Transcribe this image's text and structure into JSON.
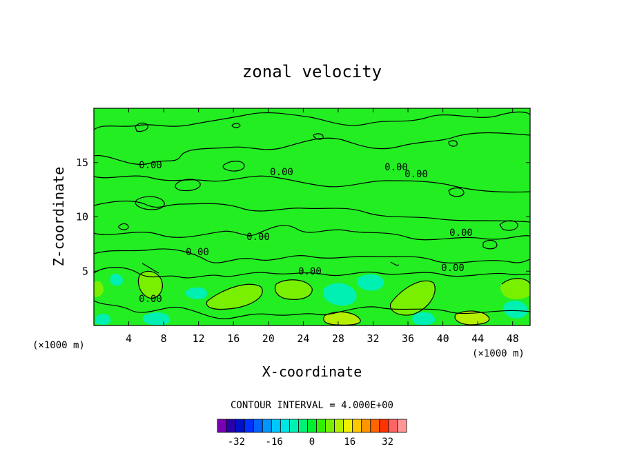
{
  "chart_data": {
    "type": "heatmap",
    "title": "zonal velocity",
    "xlabel": "X-coordinate",
    "ylabel": "Z-coordinate",
    "x_unit_left": "(×1000 m)",
    "x_unit_right": "(×1000 m)",
    "xlim": [
      0,
      50
    ],
    "ylim": [
      0,
      20
    ],
    "x_ticks": [
      4,
      8,
      12,
      16,
      20,
      24,
      28,
      32,
      36,
      40,
      44,
      48
    ],
    "y_ticks": [
      5,
      10,
      15
    ],
    "contour_interval_label": "CONTOUR INTERVAL = 4.000E+00",
    "contour_interval": 4.0,
    "contour_labels": [
      "0.00",
      "0.00",
      "0.00",
      "0.00",
      "0.00",
      "0.00",
      "0.00",
      "0.00",
      "0.00",
      "0.00",
      "0.00"
    ],
    "colorbar": {
      "min": -40,
      "max": 40,
      "step": 4,
      "tick_values": [
        -32,
        -16,
        0,
        16,
        32
      ],
      "tick_labels": [
        "-32",
        "-16",
        "0",
        "16",
        "32"
      ],
      "colors": [
        "#7a00b4",
        "#2a00a8",
        "#0010c8",
        "#0030ff",
        "#0064ff",
        "#0096ff",
        "#00c8ff",
        "#00e6e6",
        "#00f0b4",
        "#00f078",
        "#00f030",
        "#30f000",
        "#78f000",
        "#b4f000",
        "#f0f000",
        "#ffc800",
        "#ff9600",
        "#ff6400",
        "#ff3200",
        "#ff6464",
        "#ff9696"
      ]
    },
    "background_value_color": "#22ee22",
    "field_notes": "values mostly near zero with weak positive (yellow-green) and negative (cyan-green) cells near the bottom boundary"
  }
}
